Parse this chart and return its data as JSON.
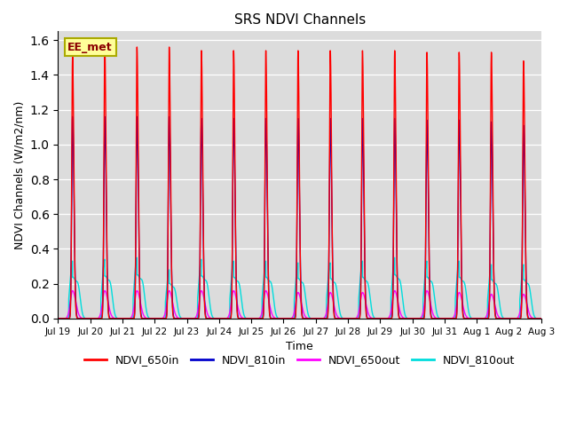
{
  "title": "SRS NDVI Channels",
  "ylabel": "NDVI Channels (W/m2/nm)",
  "xlabel": "Time",
  "annotation": "EE_met",
  "background_color": "#dcdcdc",
  "ylim": [
    0.0,
    1.65
  ],
  "colors": {
    "NDVI_650in": "#ff0000",
    "NDVI_810in": "#0000cc",
    "NDVI_650out": "#ff00ff",
    "NDVI_810out": "#00dddd"
  },
  "num_cycles": 15,
  "peaks_650in": [
    1.51,
    1.57,
    1.56,
    1.56,
    1.54,
    1.54,
    1.54,
    1.54,
    1.54,
    1.54,
    1.54,
    1.53,
    1.53,
    1.53,
    1.48
  ],
  "peaks_810in": [
    1.16,
    1.16,
    1.16,
    1.16,
    1.15,
    1.15,
    1.15,
    1.15,
    1.15,
    1.15,
    1.15,
    1.14,
    1.14,
    1.13,
    1.11
  ],
  "peaks_650out": [
    0.16,
    0.16,
    0.16,
    0.16,
    0.16,
    0.16,
    0.16,
    0.15,
    0.15,
    0.15,
    0.16,
    0.16,
    0.15,
    0.14,
    0.14
  ],
  "peaks_810out_main": [
    0.33,
    0.34,
    0.35,
    0.28,
    0.34,
    0.33,
    0.33,
    0.32,
    0.32,
    0.33,
    0.35,
    0.33,
    0.33,
    0.31,
    0.31
  ],
  "xtick_labels": [
    "Jul 19",
    "Jul 20",
    "Jul 21",
    "Jul 22",
    "Jul 23",
    "Jul 24",
    "Jul 25",
    "Jul 26",
    "Jul 27",
    "Jul 28",
    "Jul 29",
    "Jul 30",
    "Jul 31",
    "Aug 1",
    "Aug 2",
    "Aug 3"
  ],
  "legend_entries": [
    "NDVI_650in",
    "NDVI_810in",
    "NDVI_650out",
    "NDVI_810out"
  ]
}
